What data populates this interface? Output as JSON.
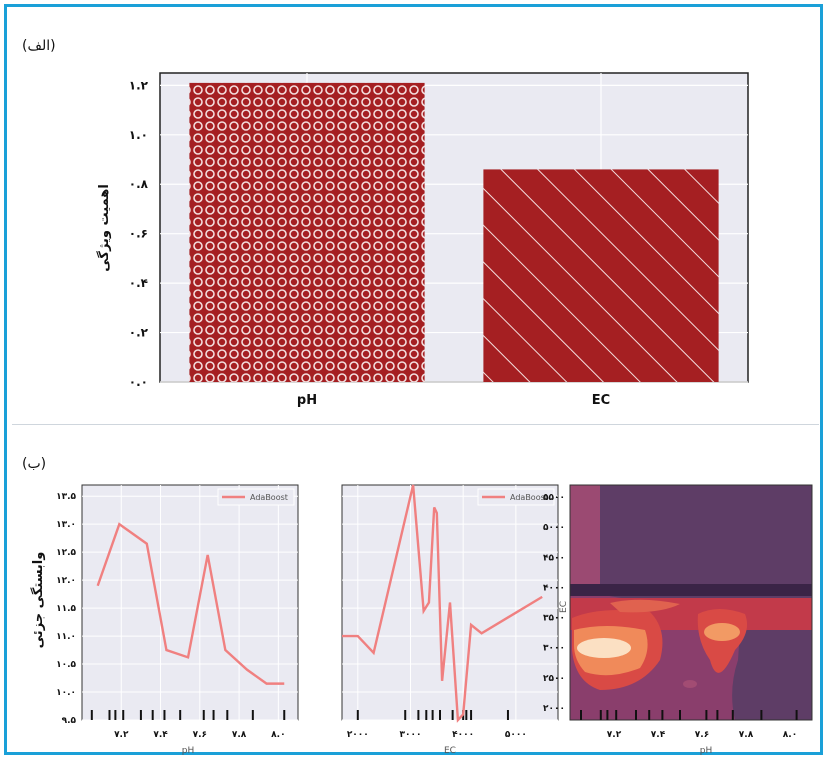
{
  "colors": {
    "bar": "#a51f22",
    "line": "#f08080",
    "grid": "#ffffff",
    "bg": "#eaeaf2",
    "frame": "#1aa0d8"
  },
  "panel_a_label": "(الف)",
  "panel_b_label": "(ب)",
  "chart_data": [
    {
      "type": "bar",
      "categories": [
        "pH",
        "EC"
      ],
      "values": [
        1.21,
        0.86
      ],
      "patterns": [
        "circles",
        "diagonal-stripes"
      ],
      "ylabel": "اهمیت ویژگی",
      "ylim": [
        0,
        1.25
      ],
      "yticks": [
        "۰.۰",
        "۰.۲",
        "۰.۴",
        "۰.۶",
        "۰.۸",
        "۱.۰",
        "۱.۲"
      ],
      "grid": true
    },
    {
      "type": "line",
      "series": [
        {
          "name": "AdaBoost",
          "x": [
            7.08,
            7.19,
            7.33,
            7.43,
            7.54,
            7.64,
            7.73,
            7.84,
            7.94,
            8.03
          ],
          "y": [
            11.9,
            13.0,
            12.65,
            10.75,
            10.62,
            12.45,
            10.75,
            10.4,
            10.15,
            10.15
          ]
        }
      ],
      "xlabel": "pH",
      "ylabel": "وابستگی جزئی",
      "xlim": [
        7.0,
        8.1
      ],
      "ylim": [
        9.5,
        13.7
      ],
      "xticks": [
        "۷.۲",
        "۷.۴",
        "۷.۶",
        "۷.۸",
        "۸.۰"
      ],
      "yticks": [
        "۹.۵",
        "۱۰.۰",
        "۱۰.۵",
        "۱۱.۰",
        "۱۱.۵",
        "۱۲.۰",
        "۱۲.۵",
        "۱۳.۰",
        "۱۳.۵"
      ],
      "rug": [
        7.05,
        7.14,
        7.17,
        7.21,
        7.3,
        7.36,
        7.42,
        7.5,
        7.62,
        7.67,
        7.74,
        7.87,
        8.03
      ],
      "legend": "top-right",
      "grid": true
    },
    {
      "type": "line",
      "series": [
        {
          "name": "AdaBoost",
          "x": [
            1700,
            2000,
            2300,
            3050,
            3250,
            3350,
            3450,
            3500,
            3600,
            3750,
            3900,
            4000,
            4150,
            4350,
            5500
          ],
          "y": [
            11.0,
            11.0,
            10.7,
            13.7,
            11.45,
            11.6,
            13.3,
            13.2,
            10.2,
            11.6,
            9.5,
            9.6,
            11.2,
            11.05,
            11.7
          ]
        }
      ],
      "xlabel": "EC",
      "xlim": [
        1700,
        5800
      ],
      "xticks": [
        "۲۰۰۰",
        "۳۰۰۰",
        "۴۰۰۰",
        "۵۰۰۰"
      ],
      "rug": [
        2000,
        2900,
        3150,
        3300,
        3420,
        3560,
        3800,
        4000,
        4060,
        4150,
        4850
      ],
      "legend": "top-right",
      "grid": true
    },
    {
      "type": "heatmap",
      "xlabel": "pH",
      "ylabel": "EC",
      "xticks": [
        "۷.۲",
        "۷.۴",
        "۷.۶",
        "۷.۸",
        "۸.۰"
      ],
      "yticks": [
        "۲۰۰۰",
        "۲۵۰۰",
        "۳۰۰۰",
        "۳۵۰۰",
        "۴۰۰۰",
        "۴۵۰۰",
        "۵۰۰۰",
        "۵۵۰۰"
      ],
      "rug": [
        7.05,
        7.14,
        7.17,
        7.21,
        7.3,
        7.36,
        7.42,
        7.5,
        7.62,
        7.67,
        7.74,
        7.87,
        8.03
      ]
    }
  ]
}
